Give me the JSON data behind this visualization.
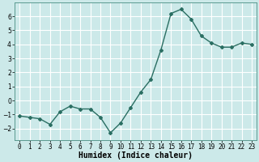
{
  "x": [
    0,
    1,
    2,
    3,
    4,
    5,
    6,
    7,
    8,
    9,
    10,
    11,
    12,
    13,
    14,
    15,
    16,
    17,
    18,
    19,
    20,
    21,
    22,
    23
  ],
  "y": [
    -1.1,
    -1.2,
    -1.3,
    -1.7,
    -0.8,
    -0.4,
    -0.6,
    -0.6,
    -1.2,
    -2.3,
    -1.6,
    -0.5,
    0.6,
    1.5,
    3.6,
    6.2,
    6.5,
    5.8,
    4.6,
    4.1,
    3.8,
    3.8,
    4.1,
    4.0
  ],
  "line_color": "#2a6e62",
  "marker": "D",
  "marker_size": 2.0,
  "linewidth": 1.0,
  "xlabel": "Humidex (Indice chaleur)",
  "xlabel_fontsize": 7,
  "xlabel_fontweight": "bold",
  "bg_color": "#cce9e9",
  "grid_color": "#ffffff",
  "xlim": [
    -0.5,
    23.5
  ],
  "ylim": [
    -2.8,
    7.0
  ],
  "yticks": [
    -2,
    -1,
    0,
    1,
    2,
    3,
    4,
    5,
    6
  ],
  "xtick_labels": [
    "0",
    "1",
    "2",
    "3",
    "4",
    "5",
    "6",
    "7",
    "8",
    "9",
    "10",
    "11",
    "12",
    "13",
    "14",
    "15",
    "16",
    "17",
    "18",
    "19",
    "20",
    "21",
    "22",
    "23"
  ],
  "tick_fontsize": 5.5
}
